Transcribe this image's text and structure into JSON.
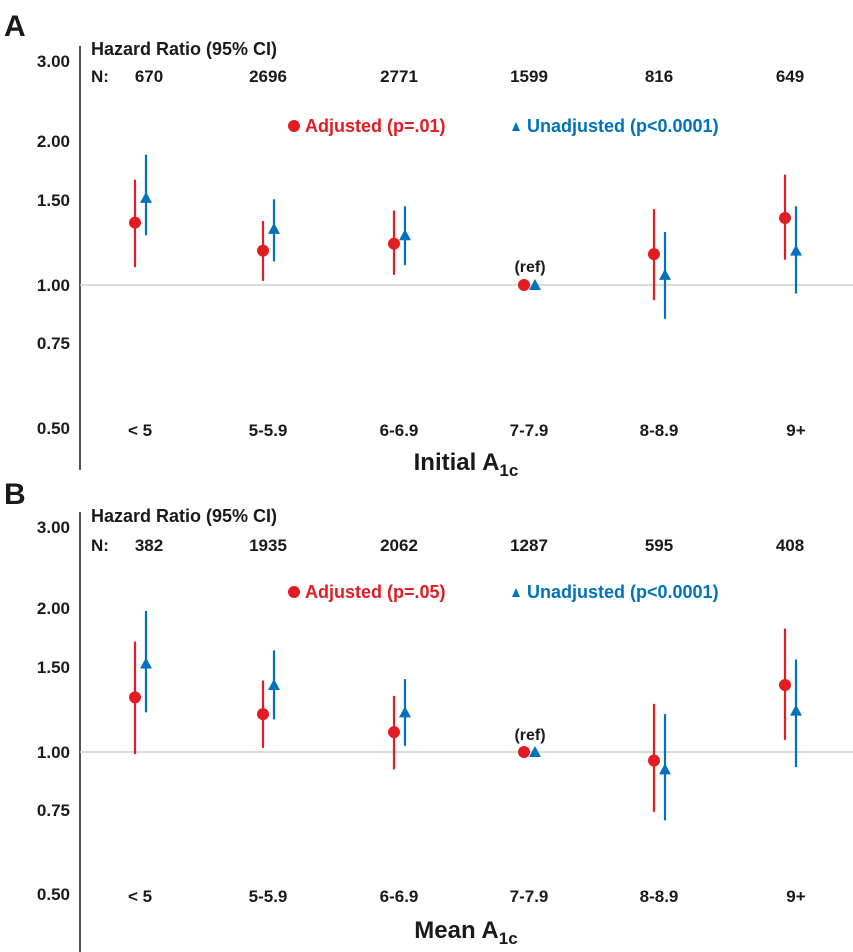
{
  "colors": {
    "adjusted": "#e31b23",
    "unadjusted": "#0072bc",
    "refline": "#cfcfcf",
    "text": "#1a1a1a"
  },
  "chart_data": [
    {
      "panel": "A",
      "type": "scatter",
      "header": "Hazard Ratio (95% CI)",
      "n_label": "N:",
      "n": [
        "670",
        "2696",
        "2771",
        "1599",
        "816",
        "649"
      ],
      "categories": [
        "< 5",
        "5-5.9",
        "6-6.9",
        "7-7.9",
        "8-8.9",
        "9+"
      ],
      "xlabel_main": "Initial A",
      "xlabel_sub": "1c",
      "y_scale": "log",
      "ylim": [
        0.5,
        3.0
      ],
      "y_ticks": [
        "3.00",
        "2.00",
        "1.50",
        "1.00",
        "0.75",
        "0.50"
      ],
      "ref_label": "(ref)",
      "series": [
        {
          "name": "Adjusted (p=.01)",
          "marker": "circle",
          "values": [
            1.35,
            1.18,
            1.22,
            1.0,
            1.16,
            1.38
          ],
          "lower": [
            1.09,
            1.02,
            1.05,
            1.0,
            0.93,
            1.13
          ],
          "upper": [
            1.66,
            1.36,
            1.43,
            1.0,
            1.44,
            1.7
          ]
        },
        {
          "name": "Unadjusted (p<0.0001)",
          "marker": "triangle",
          "values": [
            1.52,
            1.31,
            1.27,
            1.0,
            1.05,
            1.18
          ],
          "lower": [
            1.27,
            1.12,
            1.1,
            1.0,
            0.85,
            0.96
          ],
          "upper": [
            1.87,
            1.51,
            1.46,
            1.0,
            1.29,
            1.46
          ]
        }
      ]
    },
    {
      "panel": "B",
      "type": "scatter",
      "header": "Hazard Ratio (95% CI)",
      "n_label": "N:",
      "n": [
        "382",
        "1935",
        "2062",
        "1287",
        "595",
        "408"
      ],
      "categories": [
        "< 5",
        "5-5.9",
        "6-6.9",
        "7-7.9",
        "8-8.9",
        "9+"
      ],
      "xlabel_main": "Mean A",
      "xlabel_sub": "1c",
      "y_scale": "log",
      "ylim": [
        0.5,
        3.0
      ],
      "y_ticks": [
        "3.00",
        "2.00",
        "1.50",
        "1.00",
        "0.75",
        "0.50"
      ],
      "ref_label": "(ref)",
      "series": [
        {
          "name": "Adjusted (p=.05)",
          "marker": "circle",
          "values": [
            1.3,
            1.2,
            1.1,
            1.0,
            0.96,
            1.38
          ],
          "lower": [
            0.99,
            1.02,
            0.92,
            1.0,
            0.75,
            1.06
          ],
          "upper": [
            1.7,
            1.41,
            1.31,
            1.0,
            1.26,
            1.81
          ]
        },
        {
          "name": "Unadjusted (p<0.0001)",
          "marker": "triangle",
          "values": [
            1.53,
            1.38,
            1.21,
            1.0,
            0.92,
            1.22
          ],
          "lower": [
            1.21,
            1.17,
            1.03,
            1.0,
            0.72,
            0.93
          ],
          "upper": [
            1.97,
            1.63,
            1.42,
            1.0,
            1.2,
            1.56
          ]
        }
      ]
    }
  ]
}
